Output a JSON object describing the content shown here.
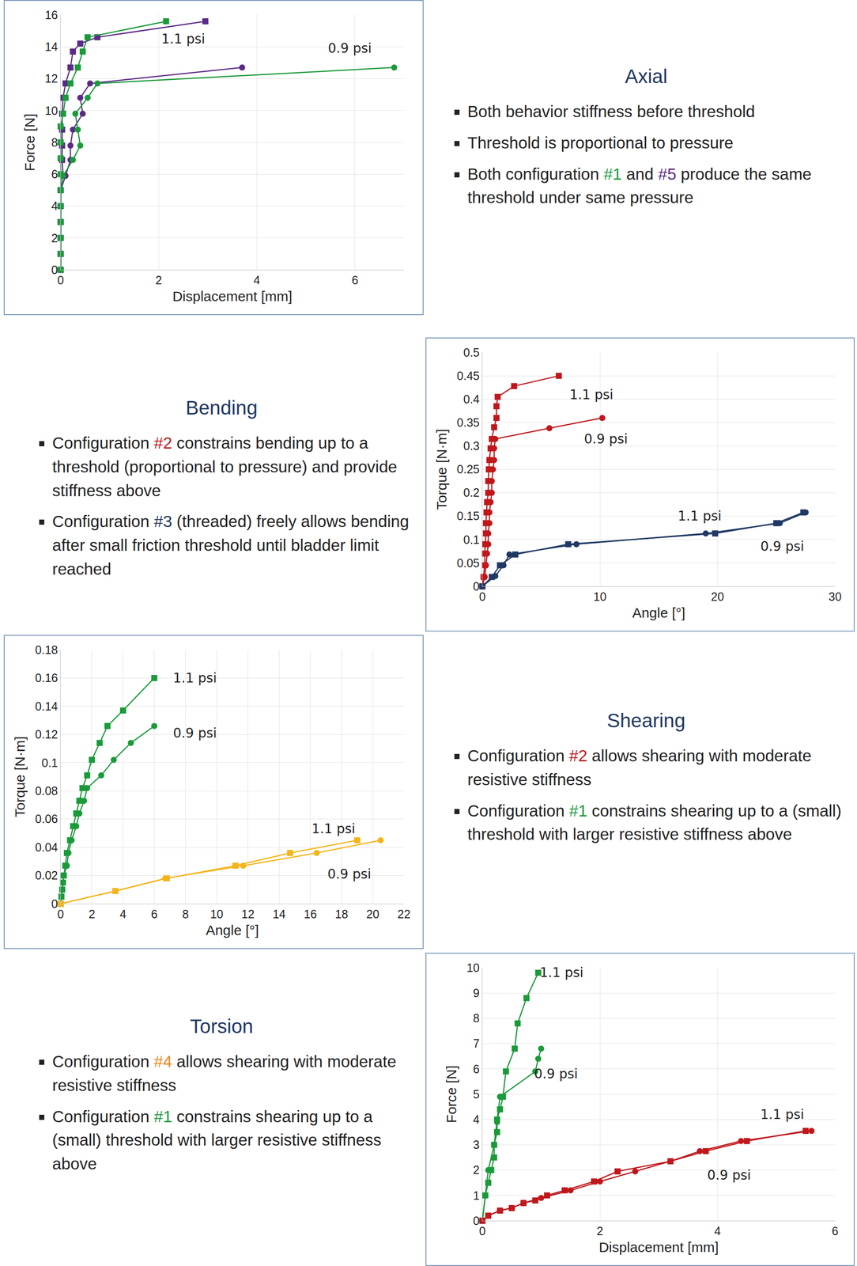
{
  "chart_data": [
    {
      "type": "line",
      "xlabel": "Displacement [mm]",
      "ylabel": "Force [N]",
      "xlim": [
        0,
        7
      ],
      "xticks": [
        0,
        2,
        4,
        6
      ],
      "ylim": [
        0,
        16
      ],
      "yticks": [
        0,
        2,
        4,
        6,
        8,
        10,
        12,
        14,
        16
      ],
      "grid": true,
      "series": [
        {
          "color": "#5b2a86",
          "marker": "square",
          "x": [
            0,
            0,
            0,
            0,
            0,
            0,
            0.05,
            0.03,
            0.03,
            0.03,
            0.03,
            0.05,
            0.1,
            0.2,
            0.25,
            0.4,
            0.75,
            2.95
          ],
          "values": [
            0,
            1,
            2,
            3,
            4,
            5,
            5.9,
            6.9,
            7.8,
            8.8,
            9.8,
            10.8,
            11.7,
            12.7,
            13.7,
            14.2,
            14.6,
            15.6
          ]
        },
        {
          "color": "#1a9a3a",
          "marker": "square",
          "x": [
            0,
            0,
            0,
            0,
            0,
            0,
            0,
            0,
            0,
            0,
            0.05,
            0.1,
            0.2,
            0.35,
            0.45,
            0.55,
            2.15
          ],
          "values": [
            0,
            1,
            2,
            3,
            4,
            5,
            6,
            7,
            8,
            9,
            9.8,
            10.8,
            11.7,
            12.7,
            13.7,
            14.6,
            15.6
          ]
        },
        {
          "color": "#5b2a86",
          "marker": "circle",
          "x": [
            0,
            0,
            0,
            0,
            0,
            0,
            0.1,
            0.2,
            0.2,
            0.25,
            0.45,
            0.4,
            0.6,
            3.7
          ],
          "values": [
            0,
            1,
            2,
            3,
            4,
            5,
            5.9,
            6.9,
            7.8,
            8.8,
            9.8,
            10.8,
            11.7,
            12.7
          ]
        },
        {
          "color": "#1a9a3a",
          "marker": "circle",
          "x": [
            0,
            0,
            0,
            0,
            0,
            0,
            0.05,
            0.25,
            0.4,
            0.35,
            0.3,
            0.55,
            0.75,
            6.8
          ],
          "values": [
            0,
            1,
            2,
            3,
            4,
            5,
            5.9,
            6.9,
            7.8,
            8.8,
            9.8,
            10.8,
            11.7,
            12.7
          ]
        }
      ],
      "annotations": [
        {
          "text": "1.1 psi",
          "x": 2.5,
          "y": 14.5
        },
        {
          "text": "0.9 psi",
          "x": 5.9,
          "y": 13.9
        }
      ]
    },
    {
      "type": "line",
      "xlabel": "Angle [°]",
      "ylabel": "Torque [N·m]",
      "xlim": [
        0,
        30
      ],
      "xticks": [
        0,
        10,
        20,
        30
      ],
      "ylim": [
        0,
        0.5
      ],
      "yticks": [
        0,
        0.05,
        0.1,
        0.15,
        0.2,
        0.25,
        0.3,
        0.35,
        0.4,
        0.45,
        0.5
      ],
      "grid": true,
      "series": [
        {
          "color": "#c0171b",
          "marker": "square",
          "x": [
            0,
            0.1,
            0.2,
            0.2,
            0.25,
            0.3,
            0.3,
            0.35,
            0.4,
            0.5,
            0.5,
            0.55,
            0.6,
            0.7,
            0.8,
            1.0,
            1.2,
            1.2,
            1.3,
            2.7,
            6.5
          ],
          "values": [
            0,
            0.02,
            0.045,
            0.07,
            0.09,
            0.113,
            0.135,
            0.158,
            0.18,
            0.2,
            0.225,
            0.25,
            0.27,
            0.295,
            0.315,
            0.34,
            0.36,
            0.385,
            0.405,
            0.428,
            0.45
          ]
        },
        {
          "color": "#c0171b",
          "marker": "circle",
          "x": [
            0,
            0.2,
            0.3,
            0.4,
            0.5,
            0.5,
            0.6,
            0.6,
            0.7,
            0.8,
            0.8,
            0.9,
            1.0,
            1.0,
            1.1,
            5.7,
            10.2
          ],
          "values": [
            0,
            0.02,
            0.045,
            0.07,
            0.09,
            0.113,
            0.135,
            0.158,
            0.18,
            0.2,
            0.225,
            0.25,
            0.27,
            0.295,
            0.315,
            0.338,
            0.36
          ]
        },
        {
          "color": "#1f3864",
          "marker": "square",
          "x": [
            0,
            0.8,
            1.5,
            2.8,
            7.3,
            19.8,
            25,
            27.3
          ],
          "values": [
            0,
            0.02,
            0.045,
            0.068,
            0.09,
            0.113,
            0.135,
            0.158
          ]
        },
        {
          "color": "#1f3864",
          "marker": "circle",
          "x": [
            0,
            1.1,
            1.8,
            2.3,
            8,
            19,
            25.3,
            27.5
          ],
          "values": [
            0,
            0.022,
            0.045,
            0.068,
            0.09,
            0.113,
            0.135,
            0.158
          ]
        }
      ],
      "annotations": [
        {
          "text": "1.1 psi",
          "x": 9.3,
          "y": 0.41
        },
        {
          "text": "0.9 psi",
          "x": 10.5,
          "y": 0.315
        },
        {
          "text": "1.1 psi",
          "x": 18.5,
          "y": 0.15
        },
        {
          "text": "0.9 psi",
          "x": 25.5,
          "y": 0.085
        }
      ]
    },
    {
      "type": "line",
      "xlabel": "Angle [°]",
      "ylabel": "Torque [N·m]",
      "xlim": [
        0,
        22
      ],
      "xticks": [
        0,
        2,
        4,
        6,
        8,
        10,
        12,
        14,
        16,
        18,
        20,
        22
      ],
      "ylim": [
        0,
        0.18
      ],
      "yticks": [
        0,
        0.02,
        0.04,
        0.06,
        0.08,
        0.1,
        0.12,
        0.14,
        0.16,
        0.18
      ],
      "grid": true,
      "series": [
        {
          "color": "#1a9a3a",
          "marker": "square",
          "x": [
            0,
            0.05,
            0.1,
            0.15,
            0.2,
            0.3,
            0.4,
            0.6,
            0.8,
            1.0,
            1.2,
            1.4,
            1.7,
            2.0,
            2.5,
            3.0,
            4.0,
            6.0
          ],
          "values": [
            0,
            0.005,
            0.01,
            0.015,
            0.02,
            0.027,
            0.036,
            0.045,
            0.055,
            0.064,
            0.073,
            0.082,
            0.091,
            0.102,
            0.114,
            0.126,
            0.137,
            0.16
          ]
        },
        {
          "color": "#1a9a3a",
          "marker": "circle",
          "x": [
            0,
            0.1,
            0.2,
            0.4,
            0.5,
            0.7,
            1.0,
            1.2,
            1.5,
            1.7,
            2.6,
            3.4,
            4.5,
            6.0
          ],
          "values": [
            0,
            0.01,
            0.02,
            0.027,
            0.036,
            0.045,
            0.055,
            0.064,
            0.073,
            0.082,
            0.091,
            0.102,
            0.114,
            0.126
          ]
        },
        {
          "color": "#f4b41a",
          "marker": "square",
          "x": [
            0,
            3.5,
            6.8,
            11.2,
            14.7,
            19
          ],
          "values": [
            0,
            0.009,
            0.018,
            0.027,
            0.036,
            0.045
          ]
        },
        {
          "color": "#f4b41a",
          "marker": "circle",
          "x": [
            0,
            3.5,
            6.7,
            11.7,
            16.4,
            20.5
          ],
          "values": [
            0,
            0.009,
            0.018,
            0.027,
            0.036,
            0.045
          ]
        }
      ],
      "annotations": [
        {
          "text": "1.1 psi",
          "x": 8.6,
          "y": 0.16
        },
        {
          "text": "0.9 psi",
          "x": 8.6,
          "y": 0.121
        },
        {
          "text": "1.1 psi",
          "x": 17.5,
          "y": 0.053
        },
        {
          "text": "0.9 psi",
          "x": 18.5,
          "y": 0.021
        }
      ]
    },
    {
      "type": "line",
      "xlabel": "Displacement [mm]",
      "ylabel": "Force [N]",
      "xlim": [
        0,
        6
      ],
      "xticks": [
        0,
        2,
        4,
        6
      ],
      "ylim": [
        0,
        10
      ],
      "yticks": [
        0,
        1,
        2,
        3,
        4,
        5,
        6,
        7,
        8,
        9,
        10
      ],
      "grid": true,
      "series": [
        {
          "color": "#1a9a3a",
          "marker": "square",
          "x": [
            0,
            0.05,
            0.1,
            0.15,
            0.2,
            0.2,
            0.25,
            0.25,
            0.3,
            0.35,
            0.4,
            0.55,
            0.6,
            0.75,
            0.95
          ],
          "values": [
            0,
            1,
            1.5,
            2,
            2.5,
            3,
            3.5,
            4,
            4.4,
            4.9,
            5.9,
            6.8,
            7.8,
            8.8,
            9.8
          ]
        },
        {
          "color": "#1a9a3a",
          "marker": "circle",
          "x": [
            0,
            0.05,
            0.1,
            0.2,
            0.25,
            0.3,
            0.9,
            0.95,
            1.0
          ],
          "values": [
            0,
            1,
            2,
            3,
            3.9,
            4.9,
            5.9,
            6.4,
            6.8
          ]
        },
        {
          "color": "#c0171b",
          "marker": "square",
          "x": [
            0,
            0.1,
            0.3,
            0.5,
            0.7,
            0.9,
            1.1,
            1.4,
            1.9,
            2.3,
            3.2,
            3.8,
            4.5,
            5.5
          ],
          "values": [
            0,
            0.2,
            0.4,
            0.5,
            0.7,
            0.8,
            1.0,
            1.2,
            1.55,
            1.95,
            2.35,
            2.75,
            3.15,
            3.55
          ]
        },
        {
          "color": "#c0171b",
          "marker": "circle",
          "x": [
            0,
            0.1,
            0.3,
            0.5,
            0.7,
            1.0,
            1.5,
            2.0,
            2.6,
            3.2,
            3.7,
            4.4,
            5.6
          ],
          "values": [
            0,
            0.2,
            0.4,
            0.5,
            0.7,
            0.9,
            1.2,
            1.55,
            1.95,
            2.35,
            2.75,
            3.15,
            3.55
          ]
        }
      ],
      "annotations": [
        {
          "text": "1.1 psi",
          "x": 1.35,
          "y": 9.8
        },
        {
          "text": "0.9 psi",
          "x": 1.25,
          "y": 5.8
        },
        {
          "text": "1.1 psi",
          "x": 5.1,
          "y": 4.2
        },
        {
          "text": "0.9 psi",
          "x": 4.2,
          "y": 1.8
        }
      ]
    }
  ],
  "text_panels": [
    {
      "title": "Axial",
      "bullets": [
        [
          {
            "text": "Both behavior stiffness before threshold"
          }
        ],
        [
          {
            "text": "Threshold is proportional to pressure"
          }
        ],
        [
          {
            "text": "Both configuration "
          },
          {
            "text": "#1",
            "color": "#1a9a3a"
          },
          {
            "text": " and "
          },
          {
            "text": "#5",
            "color": "#5b2a86"
          },
          {
            "text": " produce the same threshold under same pressure"
          }
        ]
      ]
    },
    {
      "title": "Bending",
      "bullets": [
        [
          {
            "text": "Configuration "
          },
          {
            "text": "#2",
            "color": "#c0171b"
          },
          {
            "text": " constrains bending up to a threshold (proportional to pressure) and provide stiffness above"
          }
        ],
        [
          {
            "text": "Configuration "
          },
          {
            "text": "#3",
            "color": "#1f3864"
          },
          {
            "text": " (threaded) freely allows bending after small friction threshold until bladder limit reached"
          }
        ]
      ]
    },
    {
      "title": "Shearing",
      "bullets": [
        [
          {
            "text": "Configuration "
          },
          {
            "text": "#2",
            "color": "#c0171b"
          },
          {
            "text": " allows shearing with moderate resistive stiffness"
          }
        ],
        [
          {
            "text": "Configuration "
          },
          {
            "text": "#1",
            "color": "#1a9a3a"
          },
          {
            "text": " constrains shearing up to a (small) threshold with larger resistive stiffness above"
          }
        ]
      ]
    },
    {
      "title": "Torsion",
      "bullets": [
        [
          {
            "text": "Configuration "
          },
          {
            "text": "#4",
            "color": "#e8891c"
          },
          {
            "text": " allows shearing with moderate resistive stiffness"
          }
        ],
        [
          {
            "text": "Configuration "
          },
          {
            "text": "#1",
            "color": "#1a9a3a"
          },
          {
            "text": " constrains shearing up to a (small) threshold with larger resistive stiffness above"
          }
        ]
      ]
    }
  ]
}
